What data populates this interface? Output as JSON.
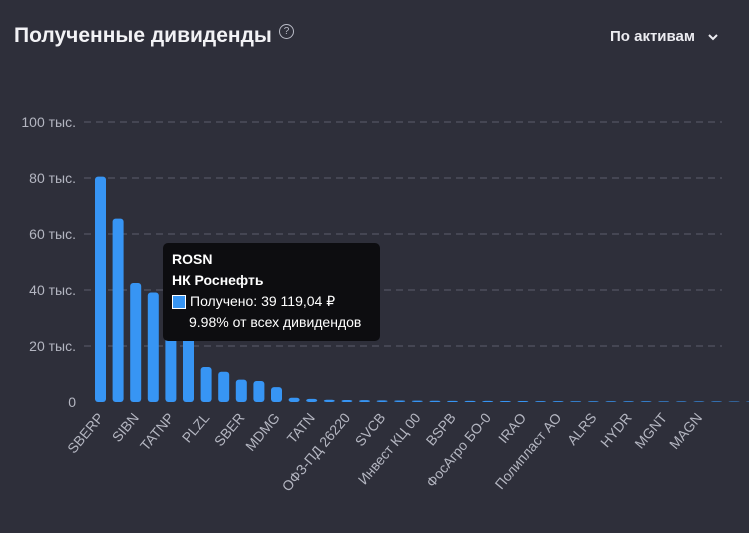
{
  "header": {
    "title": "Полученные дивиденды",
    "help_symbol": "?",
    "grouping_label": "По активам"
  },
  "colors": {
    "background": "#2e2f3a",
    "bar": "#3795f4",
    "grid": "#5c5e6c",
    "tooltip_bg": "#0d0d10"
  },
  "chart_data": {
    "type": "bar",
    "title": "Полученные дивиденды",
    "xlabel": "",
    "ylabel": "",
    "ylim": [
      0,
      100000
    ],
    "y_ticks": [
      {
        "value": 0,
        "label": "0"
      },
      {
        "value": 20000,
        "label": "20 тыс."
      },
      {
        "value": 40000,
        "label": "40 тыс."
      },
      {
        "value": 60000,
        "label": "60 тыс."
      },
      {
        "value": 80000,
        "label": "80 тыс."
      },
      {
        "value": 100000,
        "label": "100 тыс."
      }
    ],
    "grid": true,
    "legend": "none",
    "x_labels": [
      "SBERP",
      "SIBN",
      "TATNP",
      "PLZL",
      "SBER",
      "MDMG",
      "TATN",
      "ОФЗ-ПД 26220",
      "SVCB",
      "Инвест КЦ 00",
      "BSPB",
      "ФосАгро БО-0",
      "IRAO",
      "Полипласт АО",
      "ALRS",
      "HYDR",
      "MGNT",
      "MAGN"
    ],
    "values": [
      80500,
      65500,
      42500,
      39119.04,
      34000,
      28000,
      12500,
      10800,
      8000,
      7500,
      5300,
      1500,
      1100,
      800,
      700,
      650,
      600,
      550,
      500,
      450,
      420,
      400,
      380,
      360,
      340,
      320,
      300,
      290,
      280,
      270,
      260,
      250,
      240,
      230,
      220,
      210,
      200,
      190
    ]
  },
  "tooltip": {
    "ticker": "ROSN",
    "company": "НК Роснефть",
    "received_text": "Получено: 39 119,04 ₽",
    "share_text": "9.98% от всех дивидендов"
  }
}
